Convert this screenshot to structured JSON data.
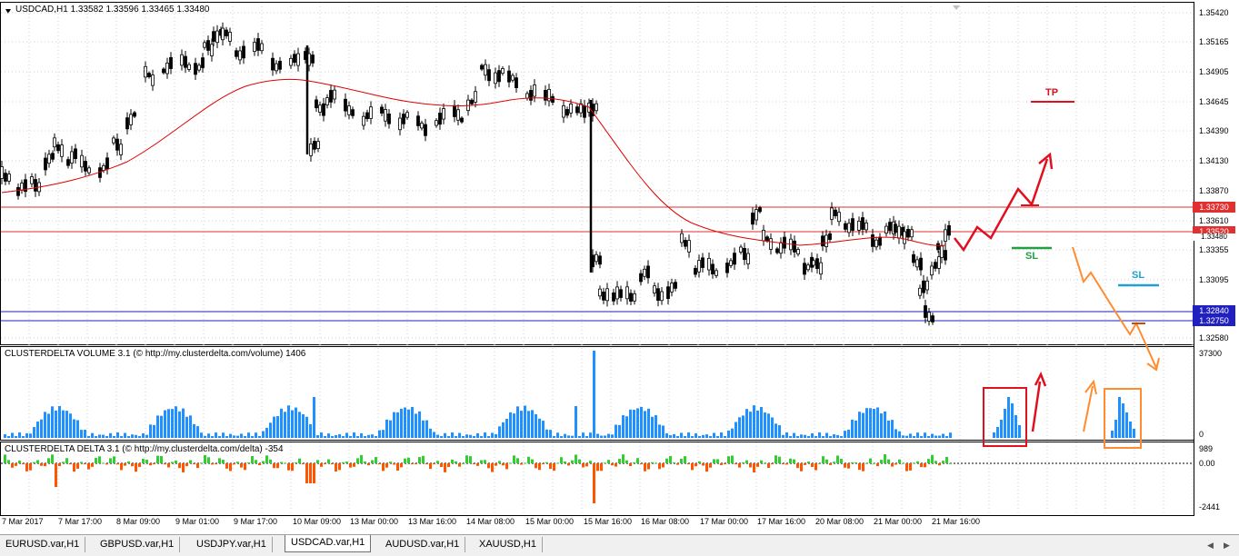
{
  "main_chart": {
    "title": "USDCAD,H1  1.33582 1.33596 1.33465 1.33480",
    "price_labels": [
      "1.35420",
      "1.35165",
      "1.34905",
      "1.34645",
      "1.34390",
      "1.34130",
      "1.33870",
      "1.33610",
      "1.33355",
      "1.33095",
      "1.32580"
    ],
    "tag_1": "1.33730",
    "tag_2": "1.33520",
    "tag_2b": "1.33480",
    "tag_3": "1.32840",
    "tag_4": "1.32750",
    "tp_label": "TP",
    "sl_label_green": "SL",
    "sl_label_blue": "SL"
  },
  "volume_pane": {
    "title": "CLUSTERDELTA VOLUME 3.1 (© http://my.clusterdelta.com/volume) 1406",
    "max_label": "37300",
    "zero_label": "0"
  },
  "delta_pane": {
    "title": "CLUSTERDELTA DELTA 3.1 (© http://my.clusterdelta.com/delta) -354",
    "top_label": "989",
    "zero_label": "0.00",
    "bottom_label": "-2441"
  },
  "time_axis": [
    "7 Mar 2017",
    "7 Mar 17:00",
    "8 Mar 09:00",
    "9 Mar 01:00",
    "9 Mar 17:00",
    "10 Mar 09:00",
    "13 Mar 00:00",
    "13 Mar 16:00",
    "14 Mar 08:00",
    "15 Mar 00:00",
    "15 Mar 16:00",
    "16 Mar 08:00",
    "17 Mar 00:00",
    "17 Mar 16:00",
    "20 Mar 08:00",
    "21 Mar 00:00",
    "21 Mar 16:00"
  ],
  "tabs": [
    "EURUSD.var,H1",
    "GBPUSD.var,H1",
    "USDJPY.var,H1",
    "USDCAD.var,H1",
    "AUDUSD.var,H1",
    "XAUUSD,H1"
  ],
  "active_tab": "USDCAD.var,H1",
  "colors": {
    "bull_candle": "#000000",
    "ma_line": "#e00000",
    "resistance": "#e03030",
    "support": "#2020c0",
    "volume_bar": "#1e90ff",
    "delta_positive": "#33cc33",
    "delta_negative": "#ff5500",
    "tp_red": "#e01020",
    "sl_green": "#20a040",
    "sl_blue": "#20a0d0",
    "orange_arrow": "#ff8c30"
  }
}
